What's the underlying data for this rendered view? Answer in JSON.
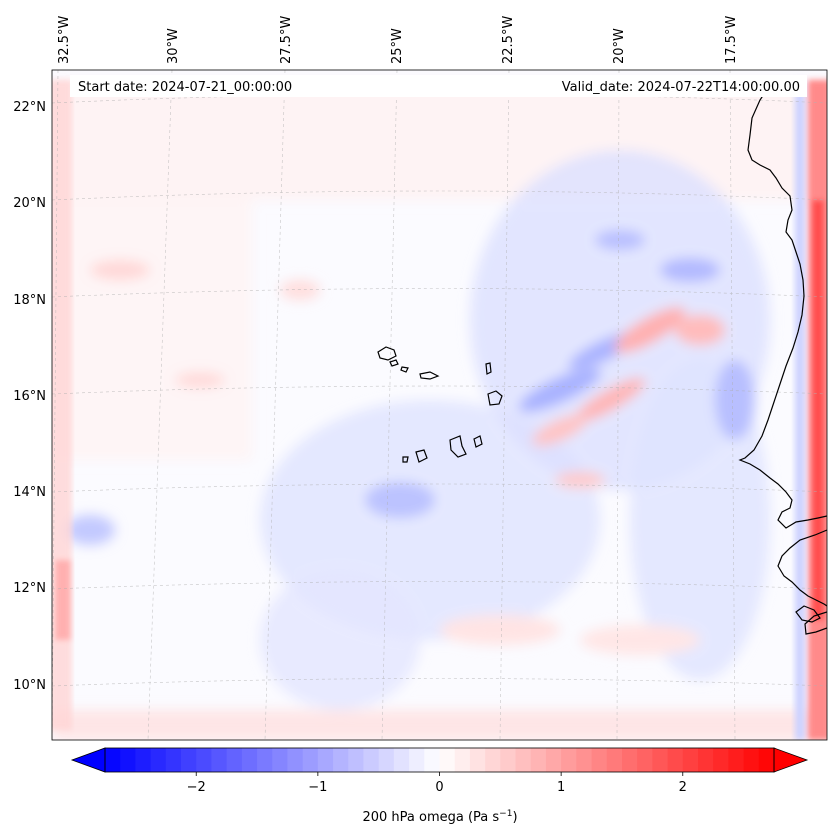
{
  "header": {
    "start_date": "Start date: 2024-07-21_00:00:00",
    "valid_date": "Valid_date: 2024-07-22T14:00:00.00"
  },
  "lon_labels": [
    "32.5°W",
    "30°W",
    "27.5°W",
    "25°W",
    "22.5°W",
    "20°W",
    "17.5°W"
  ],
  "lat_labels": [
    "22°N",
    "20°N",
    "18°N",
    "16°N",
    "14°N",
    "12°N",
    "10°N"
  ],
  "colorbar": {
    "label_main": "200 hPa omega (Pa s",
    "label_exp": "−1",
    "label_close": ")",
    "ticks": [
      "−2",
      "−1",
      "0",
      "1",
      "2"
    ],
    "min": -2.75,
    "max": 2.75,
    "tick_values": [
      -2,
      -1,
      0,
      1,
      2
    ],
    "color_min": "#0000ff",
    "color_mid": "#ffffff",
    "color_max": "#ff0000"
  },
  "colors": {
    "coastline": "#000000",
    "gridline": "#b0b0b0"
  }
}
